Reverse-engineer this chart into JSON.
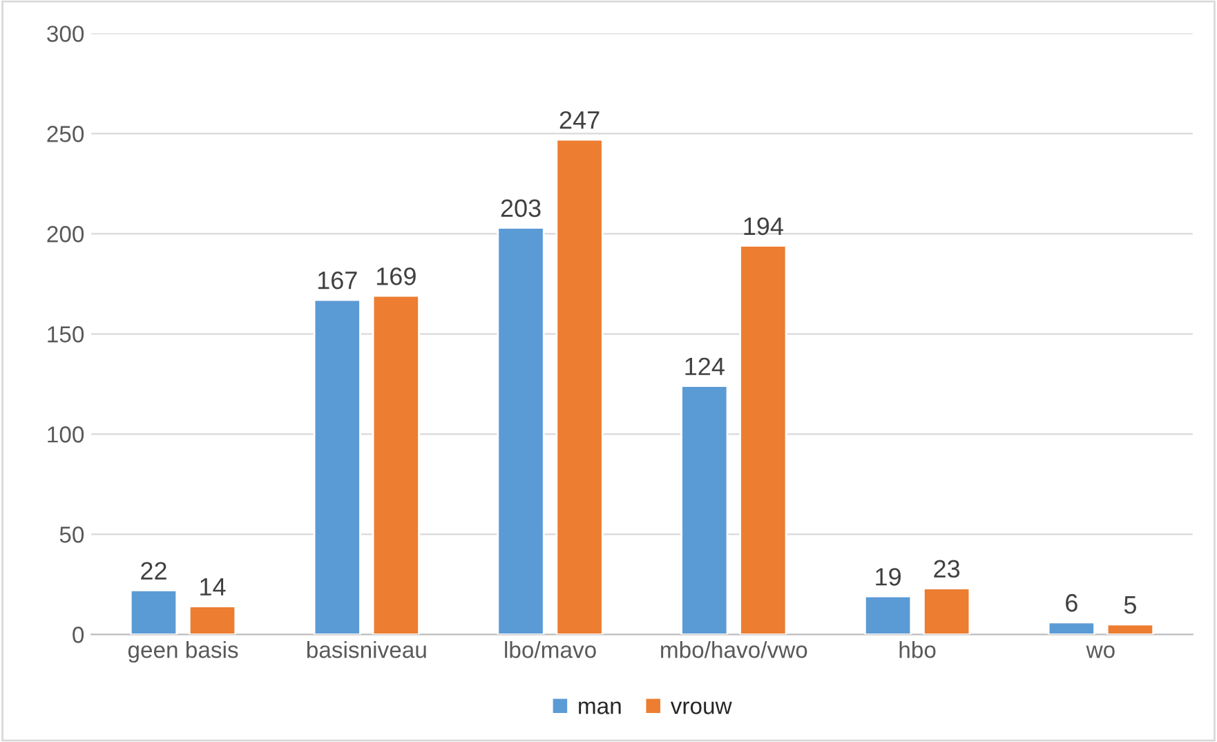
{
  "chart_data": {
    "type": "bar",
    "categories": [
      "geen basis",
      "basisniveau",
      "lbo/mavo",
      "mbo/havo/vwo",
      "hbo",
      "wo"
    ],
    "series": [
      {
        "name": "man",
        "color": "#5b9bd5",
        "values": [
          22,
          167,
          203,
          124,
          19,
          6
        ]
      },
      {
        "name": "vrouw",
        "color": "#ed7d31",
        "values": [
          14,
          169,
          247,
          194,
          23,
          5
        ]
      }
    ],
    "ylim": [
      0,
      300
    ],
    "yticks": [
      0,
      50,
      100,
      150,
      200,
      250,
      300
    ],
    "grid": "y",
    "legend": "bottom",
    "data_labels": true
  }
}
